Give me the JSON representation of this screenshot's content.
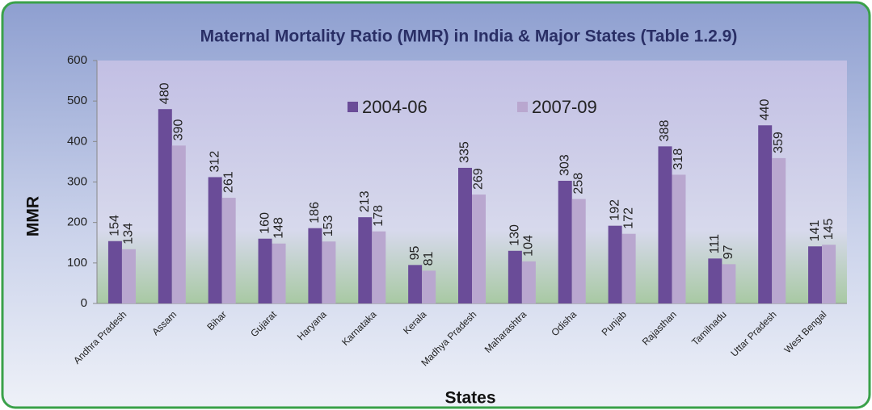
{
  "chart_data": {
    "type": "bar",
    "title": "Maternal Mortality Ratio (MMR) in India & Major States (Table 1.2.9)",
    "y_label": "MMR",
    "x_label": "States",
    "categories": [
      "Andhra Pradesh",
      "Assam",
      "Bihar",
      "Gujarat",
      "Haryana",
      "Karnataka",
      "Kerala",
      "Madhya Pradesh",
      "Maharashtra",
      "Odisha",
      "Punjab",
      "Rajasthan",
      "Tamilnadu",
      "Uttar Pradesh",
      "West Bengal"
    ],
    "series": [
      {
        "name": "2004-06",
        "color": "#6a4c98",
        "values": [
          154,
          480,
          312,
          160,
          186,
          213,
          95,
          335,
          130,
          303,
          192,
          388,
          111,
          440,
          141
        ]
      },
      {
        "name": "2007-09",
        "color": "#b9a7cf",
        "values": [
          134,
          390,
          261,
          148,
          153,
          178,
          81,
          269,
          104,
          258,
          172,
          318,
          97,
          359,
          145
        ]
      }
    ],
    "ylim": [
      0,
      600
    ],
    "yticks": [
      0,
      100,
      200,
      300,
      400,
      500,
      600
    ],
    "grid": false,
    "legend": "top"
  }
}
